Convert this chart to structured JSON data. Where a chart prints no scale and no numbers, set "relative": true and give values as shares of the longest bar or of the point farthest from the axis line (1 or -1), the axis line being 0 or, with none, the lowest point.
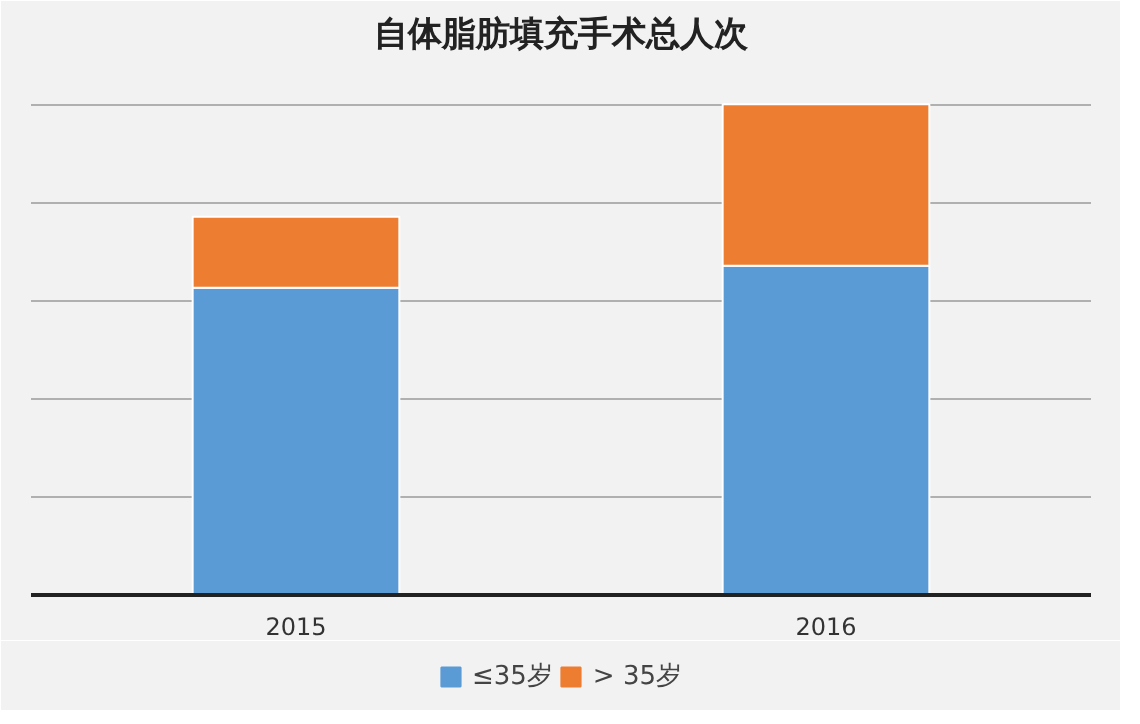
{
  "chart_data": {
    "type": "bar",
    "title": "自体脂肪填充手术总人次",
    "categories": [
      "2015",
      "2016"
    ],
    "stacked": true,
    "relative": true,
    "grid": true,
    "legend": "bottom",
    "series": [
      {
        "name": "≤35岁",
        "color": "#5b9bd5",
        "values": [
          0.626,
          0.671
        ]
      },
      {
        "name": "> 35岁",
        "color": "#ed7d31",
        "values": [
          0.145,
          0.329
        ]
      }
    ]
  }
}
